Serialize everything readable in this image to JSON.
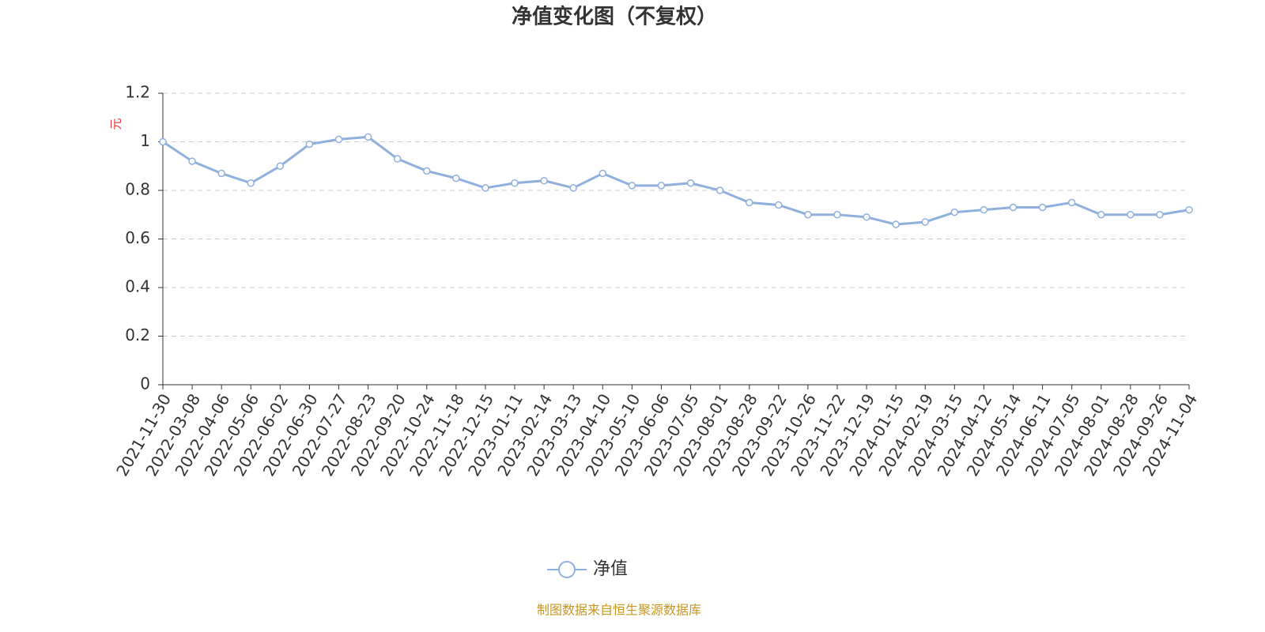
{
  "chart_data": {
    "type": "line",
    "title": "净值变化图（不复权）",
    "y_label": "元",
    "source": "制图数据来自恒生聚源数据库",
    "categories": [
      "2021-11-30",
      "2022-03-08",
      "2022-04-06",
      "2022-05-06",
      "2022-06-02",
      "2022-06-30",
      "2022-07-27",
      "2022-08-23",
      "2022-09-20",
      "2022-10-24",
      "2022-11-18",
      "2022-12-15",
      "2023-01-11",
      "2023-02-14",
      "2023-03-13",
      "2023-04-10",
      "2023-05-10",
      "2023-06-06",
      "2023-07-05",
      "2023-08-01",
      "2023-08-28",
      "2023-09-22",
      "2023-10-26",
      "2023-11-22",
      "2023-12-19",
      "2024-01-15",
      "2024-02-19",
      "2024-03-15",
      "2024-04-12",
      "2024-05-14",
      "2024-06-11",
      "2024-07-05",
      "2024-08-01",
      "2024-08-28",
      "2024-09-26",
      "2024-11-04"
    ],
    "series": [
      {
        "name": "净值",
        "color": "#8fb0dc",
        "values": [
          1.0,
          0.92,
          0.87,
          0.83,
          0.9,
          0.99,
          1.01,
          1.02,
          0.93,
          0.88,
          0.85,
          0.81,
          0.83,
          0.84,
          0.81,
          0.87,
          0.82,
          0.82,
          0.83,
          0.8,
          0.75,
          0.74,
          0.7,
          0.7,
          0.69,
          0.66,
          0.67,
          0.71,
          0.72,
          0.73,
          0.73,
          0.75,
          0.7,
          0.7,
          0.7,
          0.72
        ]
      }
    ],
    "ylim": [
      0,
      1.2
    ],
    "yticks": [
      0,
      0.2,
      0.4,
      0.6,
      0.8,
      1,
      1.2
    ],
    "grid": true
  }
}
